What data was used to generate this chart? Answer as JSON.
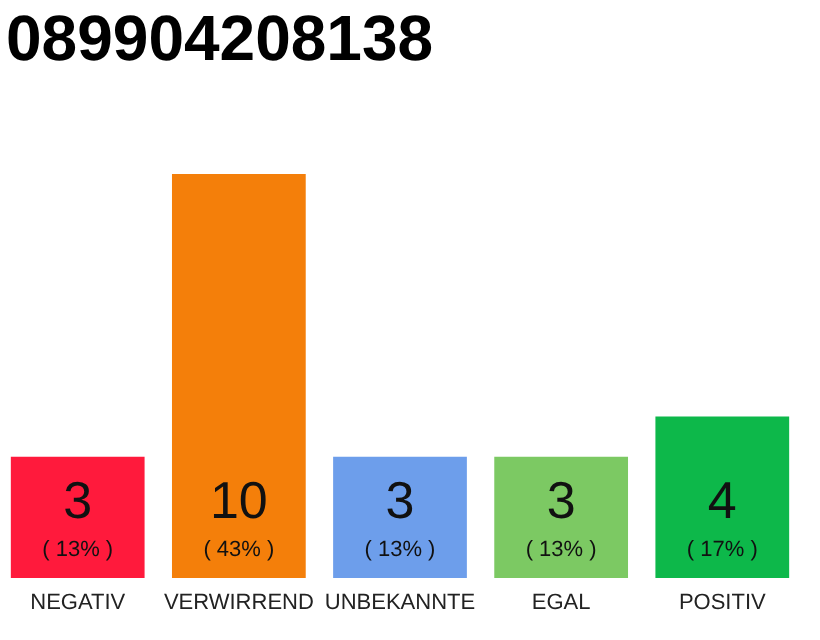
{
  "chart_data": {
    "type": "bar",
    "title": "089904208138",
    "categories": [
      "NEGATIV",
      "VERWIRREND",
      "UNBEKANNTE",
      "EGAL",
      "POSITIV"
    ],
    "values": [
      3,
      10,
      3,
      3,
      4
    ],
    "colors": [
      "#ff1a3c",
      "#f47f0a",
      "#6d9eeb",
      "#7cc963",
      "#0db84a"
    ],
    "data_labels": true,
    "annotations": [
      "( 13% )",
      "( 43% )",
      "( 13% )",
      "( 13% )",
      "( 17% )"
    ]
  }
}
